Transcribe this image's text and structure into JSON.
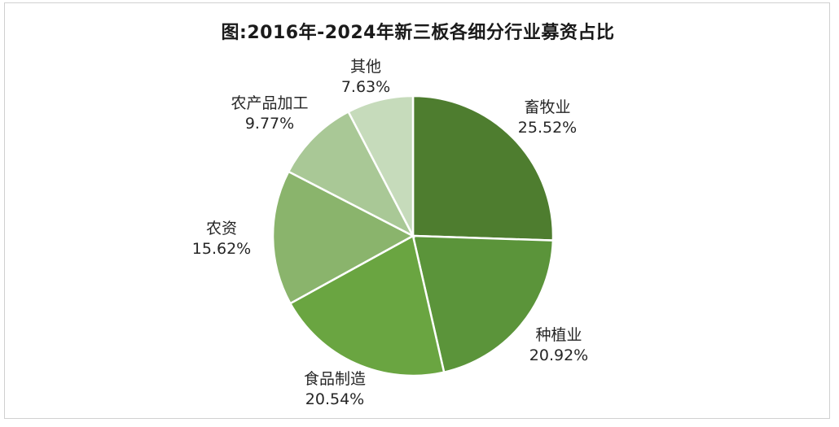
{
  "chart_data": {
    "type": "pie",
    "title": "图:2016年-2024年新三板各细分行业募资占比",
    "slices": [
      {
        "name": "畜牧业",
        "value": 25.52,
        "label": "25.52%",
        "color": "#4e7d2f"
      },
      {
        "name": "种植业",
        "value": 20.92,
        "label": "20.92%",
        "color": "#5b943a"
      },
      {
        "name": "食品制造",
        "value": 20.54,
        "label": "20.54%",
        "color": "#6aa541"
      },
      {
        "name": "农资",
        "value": 15.62,
        "label": "15.62%",
        "color": "#8ab46c"
      },
      {
        "name": "农产品加工",
        "value": 9.77,
        "label": "9.77%",
        "color": "#a9c896"
      },
      {
        "name": "其他",
        "value": 7.63,
        "label": "7.63%",
        "color": "#c6dbbb"
      }
    ],
    "legend": "none",
    "start_angle": "12 o'clock",
    "direction": "clockwise"
  }
}
